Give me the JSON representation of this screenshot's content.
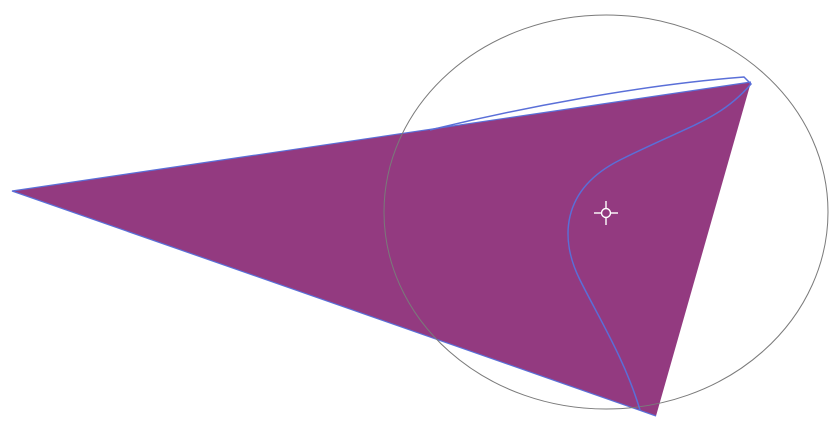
{
  "canvas": {
    "background": "#ffffff"
  },
  "shape": {
    "kind": "triangle",
    "fill": "#933a80",
    "edge_color": "#5a6fd8"
  },
  "brush_cursor": {
    "kind": "circle",
    "stroke": "#7a7a7a"
  },
  "path_overlay": {
    "kind": "bezier-path",
    "stroke": "#5a6fd8"
  },
  "crosshair": {
    "icon": "move-crosshair-icon",
    "stroke": "#ffffff"
  }
}
